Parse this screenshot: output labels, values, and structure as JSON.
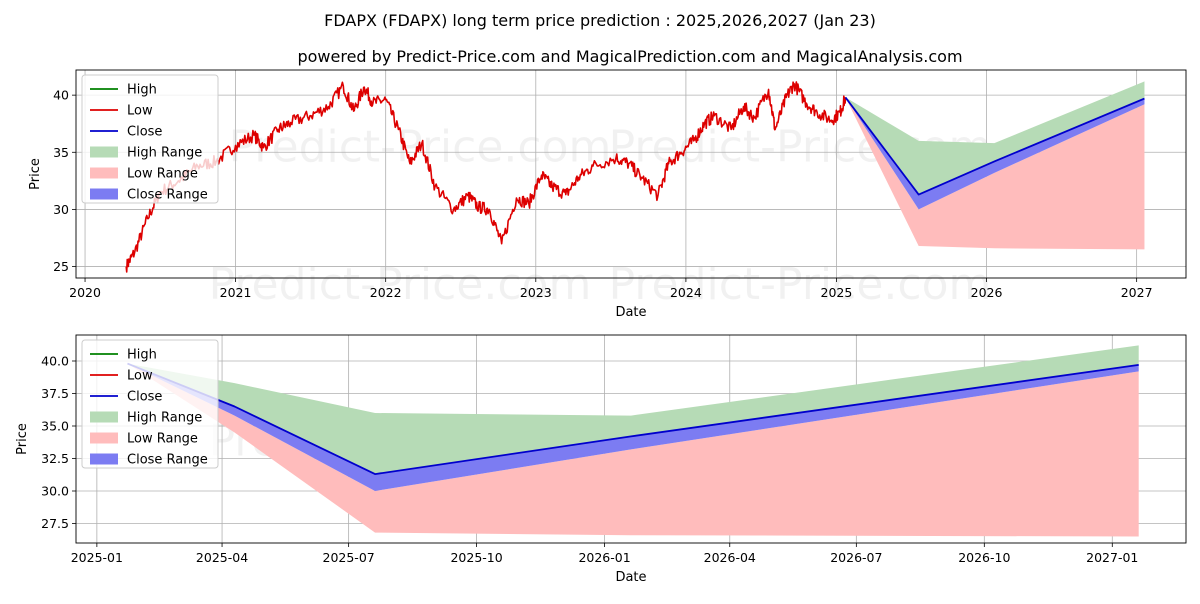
{
  "header": {
    "title": "FDAPX (FDAPX) long term price prediction : 2025,2026,2027 (Jan 23)",
    "subtitle": "powered by Predict-Price.com and MagicalPrediction.com and MagicalAnalysis.com"
  },
  "watermark": "Predict-Price.com",
  "colors": {
    "high": "#008000",
    "low": "#dd0000",
    "close": "#0000cc",
    "high_range": "#b6dbb6",
    "low_range": "#ffbcbc",
    "close_range": "#7c7cf2",
    "grid": "#b0b0b0"
  },
  "legend": {
    "placement": "upper-left",
    "items": [
      {
        "key": "high",
        "label": "High",
        "kind": "line"
      },
      {
        "key": "low",
        "label": "Low",
        "kind": "line"
      },
      {
        "key": "close",
        "label": "Close",
        "kind": "line"
      },
      {
        "key": "high_range",
        "label": "High Range",
        "kind": "patch"
      },
      {
        "key": "low_range",
        "label": "Low Range",
        "kind": "patch"
      },
      {
        "key": "close_range",
        "label": "Close Range",
        "kind": "patch"
      }
    ]
  },
  "chart_data": [
    {
      "type": "line",
      "xlabel": "Date",
      "ylabel": "Price",
      "xlim": [
        "2019-12-10",
        "2027-05-01"
      ],
      "ylim": [
        24,
        42.2
      ],
      "grid": true,
      "x_ticks": [
        "2020-01-01",
        "2021-01-01",
        "2022-01-01",
        "2023-01-01",
        "2024-01-01",
        "2025-01-01",
        "2026-01-01",
        "2027-01-01"
      ],
      "x_tick_labels": [
        "2020",
        "2021",
        "2022",
        "2023",
        "2024",
        "2025",
        "2026",
        "2027"
      ],
      "y_ticks": [
        25,
        30,
        35,
        40
      ],
      "y_tick_labels": [
        "25",
        "30",
        "35",
        "40"
      ],
      "history": {
        "name": "Low",
        "dates": [
          "2020-04-10",
          "2020-05-01",
          "2020-06-01",
          "2020-07-01",
          "2020-08-15",
          "2020-10-01",
          "2020-11-15",
          "2021-01-01",
          "2021-02-15",
          "2021-03-10",
          "2021-04-15",
          "2021-05-15",
          "2021-07-01",
          "2021-08-15",
          "2021-09-20",
          "2021-10-15",
          "2021-11-10",
          "2021-12-01",
          "2022-01-01",
          "2022-02-01",
          "2022-03-01",
          "2022-03-30",
          "2022-05-01",
          "2022-06-15",
          "2022-07-20",
          "2022-08-15",
          "2022-09-10",
          "2022-10-10",
          "2022-11-15",
          "2022-12-15",
          "2023-01-15",
          "2023-02-10",
          "2023-03-15",
          "2023-04-15",
          "2023-05-20",
          "2023-07-15",
          "2023-08-15",
          "2023-09-15",
          "2023-10-25",
          "2023-11-20",
          "2023-12-20",
          "2024-01-20",
          "2024-02-15",
          "2024-03-10",
          "2024-04-20",
          "2024-05-20",
          "2024-06-15",
          "2024-07-20",
          "2024-08-05",
          "2024-09-01",
          "2024-09-20",
          "2024-10-20",
          "2024-11-15",
          "2024-12-20",
          "2025-01-10",
          "2025-01-23"
        ],
        "values": [
          25.0,
          26.3,
          29.2,
          31.5,
          32.5,
          33.8,
          34.2,
          35.6,
          36.5,
          35.4,
          37.0,
          37.6,
          38.2,
          39.0,
          40.8,
          38.6,
          40.7,
          39.3,
          39.6,
          37.0,
          34.0,
          35.8,
          32.0,
          30.0,
          31.2,
          30.2,
          30.0,
          27.0,
          31.0,
          30.5,
          33.0,
          32.0,
          31.3,
          32.8,
          33.8,
          34.5,
          34.0,
          32.8,
          31.2,
          34.0,
          35.0,
          36.0,
          37.5,
          38.2,
          37.0,
          39.0,
          38.0,
          40.5,
          37.0,
          39.8,
          41.0,
          39.3,
          38.5,
          37.8,
          38.5,
          39.8
        ]
      },
      "forecast": {
        "dates": [
          "2025-01-23",
          "2025-07-20",
          "2026-01-20",
          "2027-01-20"
        ],
        "close": [
          39.8,
          31.3,
          34.2,
          39.7
        ],
        "close_range_low": [
          39.8,
          30.0,
          33.2,
          39.2
        ],
        "high_range_high": [
          39.8,
          36.0,
          35.8,
          41.2
        ],
        "low_range_low": [
          39.8,
          26.8,
          26.6,
          26.5
        ]
      }
    },
    {
      "type": "line",
      "xlabel": "Date",
      "ylabel": "Price",
      "xlim": [
        "2024-12-17",
        "2027-02-23"
      ],
      "ylim": [
        26.0,
        42.0
      ],
      "grid": true,
      "x_ticks": [
        "2025-01-01",
        "2025-04-01",
        "2025-07-01",
        "2025-10-01",
        "2026-01-01",
        "2026-04-01",
        "2026-07-01",
        "2026-10-01",
        "2027-01-01"
      ],
      "x_tick_labels": [
        "2025-01",
        "2025-04",
        "2025-07",
        "2025-10",
        "2026-01",
        "2026-04",
        "2026-07",
        "2026-10",
        "2027-01"
      ],
      "y_ticks": [
        27.5,
        30.0,
        32.5,
        35.0,
        37.5,
        40.0
      ],
      "y_tick_labels": [
        "27.5",
        "30.0",
        "32.5",
        "35.0",
        "37.5",
        "40.0"
      ],
      "forecast": {
        "dates": [
          "2025-01-23",
          "2025-04-10",
          "2025-07-20",
          "2026-01-20",
          "2027-01-20"
        ],
        "close": [
          39.8,
          36.5,
          31.3,
          34.2,
          39.7
        ],
        "close_range_low": [
          39.8,
          35.8,
          30.0,
          33.2,
          39.2
        ],
        "high_range_high": [
          39.8,
          38.3,
          36.0,
          35.8,
          41.2
        ],
        "low_range_low": [
          39.8,
          34.5,
          26.8,
          26.6,
          26.5
        ]
      }
    }
  ]
}
